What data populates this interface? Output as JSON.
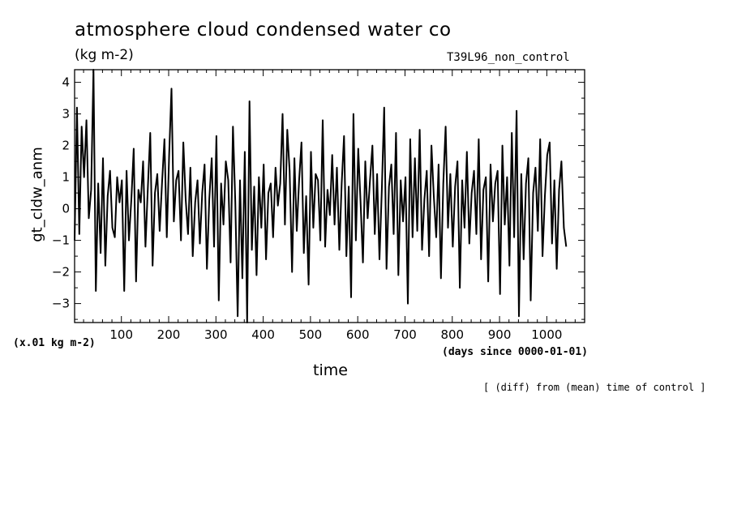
{
  "chart_data": {
    "type": "line",
    "title": "atmosphere cloud condensed water co",
    "units": "(kg m-2)",
    "experiment": "T39L96_non_control",
    "ylabel": "gt_cldw_anm",
    "xlabel": "time",
    "x_scale_note": "(x.01 kg m-2)",
    "x_units": "(days since 0000-01-01)",
    "footnote": "[ (diff) from (mean) time of control ]",
    "xlim": [
      1,
      1080
    ],
    "ylim": [
      -3.6,
      4.4
    ],
    "x_ticks": [
      100,
      200,
      300,
      400,
      500,
      600,
      700,
      800,
      900,
      1000
    ],
    "x_tick_labels": [
      "100",
      "200",
      "300",
      "400",
      "500",
      "600",
      "700",
      "800",
      "900",
      "1000"
    ],
    "y_ticks": [
      -3,
      -2,
      -1,
      0,
      1,
      2,
      3,
      4
    ],
    "y_tick_labels": [
      "−3",
      "−2",
      "−1",
      "0",
      "1",
      "2",
      "3",
      "4"
    ],
    "grid": false,
    "line_color": "#000000",
    "series": [
      {
        "x_start": 1,
        "x_step": 5,
        "values": [
          -1.0,
          3.2,
          -0.8,
          2.6,
          1.0,
          2.8,
          -0.3,
          0.6,
          4.4,
          -2.6,
          0.8,
          -1.4,
          1.6,
          -1.8,
          0.4,
          1.2,
          -0.6,
          -0.9,
          1.0,
          0.2,
          0.9,
          -2.6,
          1.2,
          -1.0,
          0.3,
          1.9,
          -2.3,
          0.6,
          0.2,
          1.5,
          -1.2,
          0.7,
          2.4,
          -1.8,
          0.5,
          1.1,
          -0.7,
          0.8,
          2.2,
          -0.9,
          1.7,
          3.8,
          -0.4,
          0.9,
          1.2,
          -1.0,
          2.1,
          0.3,
          -0.8,
          1.3,
          -1.5,
          0.2,
          0.9,
          -1.1,
          0.5,
          1.4,
          -1.9,
          0.3,
          1.6,
          -1.2,
          2.3,
          -2.9,
          0.8,
          -0.5,
          1.5,
          0.9,
          -1.7,
          2.6,
          0.2,
          -3.4,
          0.9,
          -2.2,
          1.8,
          -3.6,
          3.4,
          -1.3,
          0.7,
          -2.1,
          1.0,
          -0.6,
          1.4,
          -1.6,
          0.5,
          0.8,
          -0.9,
          1.3,
          0.1,
          0.8,
          3.0,
          -0.5,
          2.5,
          1.2,
          -2.0,
          1.6,
          -0.7,
          0.9,
          2.1,
          -1.4,
          0.4,
          -2.4,
          1.8,
          -0.6,
          1.1,
          0.9,
          -1.0,
          2.8,
          -1.2,
          0.6,
          -0.2,
          1.7,
          -0.5,
          1.3,
          -1.3,
          0.8,
          2.3,
          -1.5,
          0.7,
          -2.8,
          3.0,
          -1.0,
          1.9,
          0.2,
          -1.7,
          1.5,
          -0.3,
          0.9,
          2.0,
          -0.8,
          1.1,
          -1.6,
          0.6,
          3.2,
          -1.9,
          0.7,
          1.4,
          -0.8,
          2.4,
          -2.1,
          0.9,
          -0.4,
          1.0,
          -3.0,
          2.2,
          -0.9,
          1.6,
          -0.7,
          2.5,
          -1.3,
          0.3,
          1.2,
          -1.5,
          2.0,
          0.4,
          -0.9,
          1.4,
          -2.2,
          0.8,
          2.6,
          -0.6,
          1.1,
          -1.2,
          0.7,
          1.5,
          -2.5,
          0.9,
          -0.6,
          1.8,
          -1.1,
          0.5,
          1.2,
          -0.8,
          2.2,
          -1.6,
          0.6,
          1.0,
          -2.3,
          1.4,
          -0.4,
          0.8,
          1.2,
          -2.7,
          2.0,
          -0.5,
          1.0,
          -1.8,
          2.4,
          -0.9,
          3.1,
          -3.4,
          1.1,
          -1.6,
          0.8,
          1.6,
          -2.9,
          0.5,
          1.3,
          -0.7,
          2.2,
          -1.5,
          0.4,
          1.7,
          2.1,
          -1.1,
          0.9,
          -1.9,
          0.6,
          1.5,
          -0.6,
          -1.2
        ]
      }
    ]
  }
}
